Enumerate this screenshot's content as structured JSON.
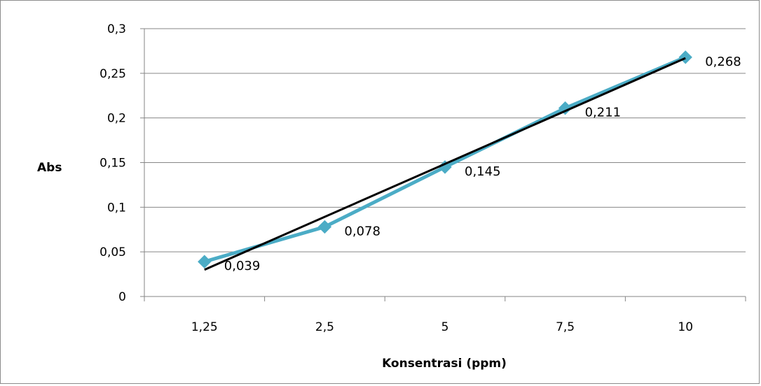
{
  "chart_data": {
    "type": "line",
    "title": "",
    "xlabel": "Konsentrasi (ppm)",
    "ylabel": "Abs",
    "categories": [
      "1,25",
      "2,5",
      "5",
      "7,5",
      "10"
    ],
    "series": [
      {
        "values": [
          0.039,
          0.078,
          0.145,
          0.211,
          0.268
        ],
        "labels": [
          "0,039",
          "0,078",
          "0,145",
          "0,211",
          "0,268"
        ],
        "color": "#4bacc6",
        "marker": "diamond"
      }
    ],
    "trendline": {
      "type": "linear",
      "start_value": 0.03,
      "end_value": 0.267,
      "color": "#000000"
    },
    "ylim": [
      0,
      0.3
    ],
    "yticks": [
      0,
      0.05,
      0.1,
      0.15,
      0.2,
      0.25,
      0.3
    ],
    "ytick_labels": [
      "0",
      "0,05",
      "0,1",
      "0,15",
      "0,2",
      "0,25",
      "0,3"
    ],
    "grid": true,
    "gridline_color": "#868686",
    "legend": "none"
  }
}
